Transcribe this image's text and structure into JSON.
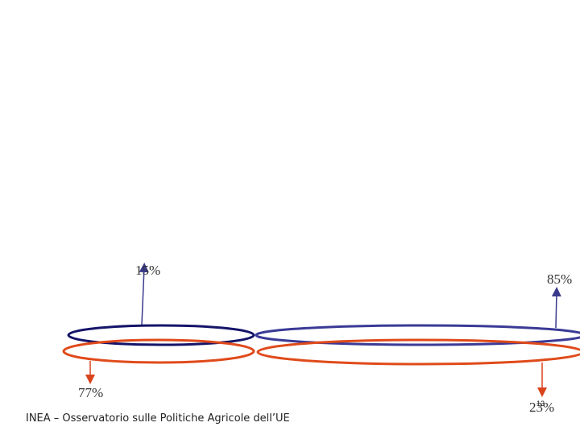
{
  "callouts": [
    {
      "label": "15%"
    },
    {
      "label": "85%"
    },
    {
      "label": "77%"
    },
    {
      "label": "23%"
    }
  ],
  "footer": {
    "source": "INEA – Osservatorio sulle Politiche Agricole dell’UE",
    "page": "13"
  }
}
